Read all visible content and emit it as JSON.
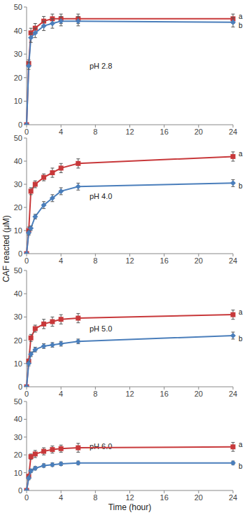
{
  "chart_data": [
    {
      "type": "line",
      "title": "pH 2.8",
      "y_label": "CAF reacted (μM)",
      "x": [
        0,
        0.25,
        0.5,
        1,
        2,
        3,
        4,
        6,
        24
      ],
      "xlim": [
        0,
        24
      ],
      "xticks": [
        0,
        4,
        8,
        12,
        16,
        20,
        24
      ],
      "ylim": [
        0,
        50
      ],
      "yticks": [
        0,
        10,
        20,
        30,
        40,
        50
      ],
      "grid": false,
      "series": [
        {
          "name": "a",
          "color": "#c8383a",
          "marker": "square",
          "values": [
            0,
            26,
            39,
            41,
            44,
            45,
            45,
            45,
            45
          ],
          "errors": [
            0,
            1.5,
            2,
            2,
            2,
            2,
            2,
            2,
            2
          ]
        },
        {
          "name": "b",
          "color": "#4a7ebb",
          "marker": "diamond",
          "values": [
            0,
            25,
            37,
            39,
            42,
            43,
            44,
            44,
            43.5
          ],
          "errors": [
            0,
            1.5,
            2,
            2,
            2,
            2,
            2,
            2,
            2
          ]
        }
      ]
    },
    {
      "type": "line",
      "title": "pH 4.0",
      "x": [
        0,
        0.25,
        0.5,
        1,
        2,
        3,
        4,
        6,
        24
      ],
      "xlim": [
        0,
        24
      ],
      "xticks": [
        0,
        4,
        8,
        12,
        16,
        20,
        24
      ],
      "ylim": [
        0,
        50
      ],
      "yticks": [
        0,
        10,
        20,
        30,
        40,
        50
      ],
      "grid": false,
      "series": [
        {
          "name": "a",
          "color": "#c8383a",
          "marker": "square",
          "values": [
            0,
            10,
            27,
            30,
            33,
            35,
            37,
            39,
            42
          ],
          "errors": [
            0,
            1.5,
            1.5,
            1.5,
            1.5,
            2,
            2,
            2,
            2
          ]
        },
        {
          "name": "b",
          "color": "#4a7ebb",
          "marker": "diamond",
          "values": [
            0,
            9,
            11,
            16,
            21,
            24,
            27,
            29,
            30.5
          ],
          "errors": [
            0,
            1,
            1,
            1,
            1.5,
            1.5,
            1.5,
            1.5,
            1.5
          ]
        }
      ]
    },
    {
      "type": "line",
      "title": "pH 5.0",
      "x": [
        0,
        0.25,
        0.5,
        1,
        2,
        3,
        4,
        6,
        24
      ],
      "xlim": [
        0,
        24
      ],
      "xticks": [
        0,
        4,
        8,
        12,
        16,
        20,
        24
      ],
      "ylim": [
        0,
        50
      ],
      "yticks": [
        0,
        10,
        20,
        30,
        40,
        50
      ],
      "grid": false,
      "series": [
        {
          "name": "a",
          "color": "#c8383a",
          "marker": "square",
          "values": [
            0,
            11,
            21,
            25,
            27,
            28,
            29,
            29.5,
            31
          ],
          "errors": [
            0,
            1,
            1.5,
            1.5,
            2,
            2,
            2,
            2,
            2
          ]
        },
        {
          "name": "b",
          "color": "#4a7ebb",
          "marker": "diamond",
          "values": [
            0,
            10,
            14,
            16,
            17.5,
            18,
            18.5,
            19.5,
            22
          ],
          "errors": [
            0,
            1,
            1,
            1,
            1,
            1,
            1,
            1,
            1.5
          ]
        }
      ]
    },
    {
      "type": "line",
      "title": "pH 6.0",
      "x_label": "Time (hour)",
      "x": [
        0,
        0.25,
        0.5,
        1,
        2,
        3,
        4,
        6,
        24
      ],
      "xlim": [
        0,
        24
      ],
      "xticks": [
        0,
        4,
        8,
        12,
        16,
        20,
        24
      ],
      "ylim": [
        0,
        50
      ],
      "yticks": [
        0,
        10,
        20,
        30,
        40,
        50
      ],
      "grid": false,
      "series": [
        {
          "name": "a",
          "color": "#c8383a",
          "marker": "square",
          "values": [
            0,
            8,
            19,
            20.5,
            22,
            23,
            23.5,
            24,
            24.5
          ],
          "errors": [
            0,
            1,
            1.5,
            2,
            2,
            2,
            2,
            2.5,
            2.5
          ]
        },
        {
          "name": "b",
          "color": "#4a7ebb",
          "marker": "diamond",
          "values": [
            0,
            7,
            11,
            12.5,
            14,
            14.5,
            15,
            15.5,
            15.5
          ],
          "errors": [
            0,
            1,
            1,
            1,
            1,
            1,
            1,
            1,
            1
          ]
        }
      ]
    }
  ]
}
